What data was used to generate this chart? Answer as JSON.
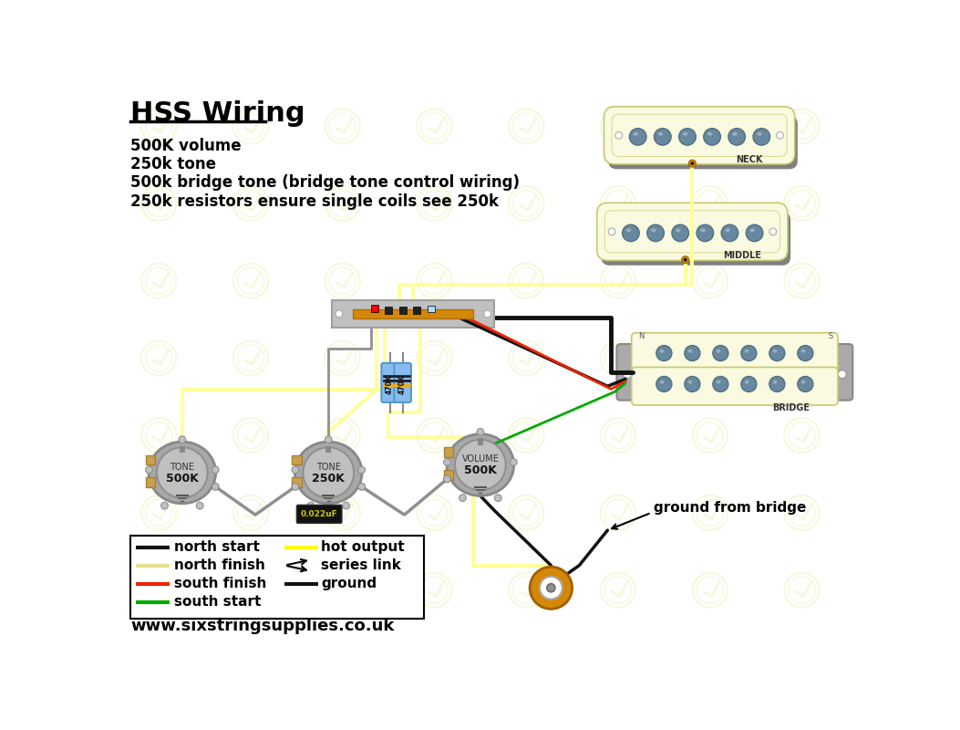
{
  "title": "HSS Wiring",
  "subtitle_lines": [
    "500K volume",
    "250k tone",
    "500k bridge tone (bridge tone control wiring)",
    "250k resistors ensure single coils see 250k"
  ],
  "bg_color": "#ffffff",
  "watermark_color_light": "#f5f5d0",
  "pickup_cream": "#fafae0",
  "pickup_shadow": "#909090",
  "pickup_pole": "#6888a0",
  "switch_gray": "#b8b8b8",
  "switch_bar": "#d4880a",
  "pot_body": "#a0a0a0",
  "pot_inner": "#b8b8b8",
  "pot_lug": "#c8a050",
  "wire_yellow": "#ffff99",
  "wire_black": "#111111",
  "wire_red": "#ee2200",
  "wire_green": "#00aa00",
  "wire_gray": "#909090",
  "resistor_blue": "#88bbee",
  "cap_black": "#111111",
  "jack_gold": "#d4880a",
  "legend_yellow": "#e8e090",
  "website": "www.sixstringsupplies.co.uk"
}
